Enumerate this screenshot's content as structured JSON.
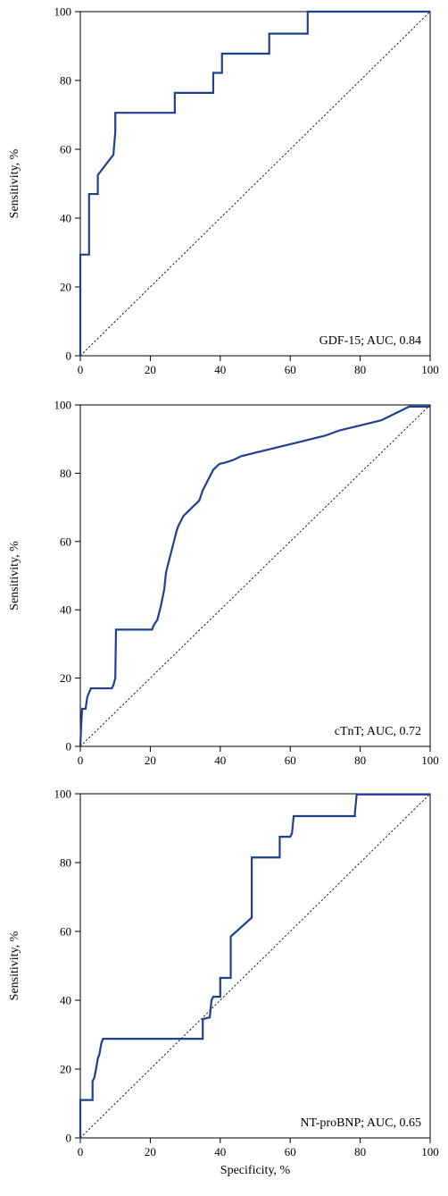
{
  "colors": {
    "curve": "#1f3f8f",
    "axis": "#000000",
    "reference": "#000000"
  },
  "chart_data": [
    {
      "type": "line",
      "annotation": "GDF-15; AUC, 0.84",
      "xlabel": "",
      "ylabel": "Sensitivity, %",
      "xlim": [
        0,
        100
      ],
      "ylim": [
        0,
        100
      ],
      "xticks": [
        0,
        20,
        40,
        60,
        80,
        100
      ],
      "yticks": [
        0,
        20,
        40,
        60,
        80,
        100
      ],
      "grid": false,
      "reference_line": [
        [
          0,
          0
        ],
        [
          100,
          100
        ]
      ],
      "series": [
        {
          "x": [
            0,
            0,
            2.5,
            2.5,
            5,
            5,
            9.5,
            9.5,
            10,
            10,
            27,
            27,
            38,
            38,
            40.5,
            40.5,
            54,
            54,
            65,
            65,
            100
          ],
          "y": [
            0,
            29.4,
            29.4,
            47,
            47,
            52.5,
            58.5,
            59,
            65,
            70.6,
            70.6,
            76.4,
            76.4,
            82.2,
            82.2,
            87.8,
            87.8,
            93.6,
            93.6,
            100,
            100
          ]
        }
      ]
    },
    {
      "type": "line",
      "annotation": "cTnT; AUC, 0.72",
      "xlabel": "",
      "ylabel": "Sensitivity, %",
      "xlim": [
        0,
        100
      ],
      "ylim": [
        0,
        100
      ],
      "xticks": [
        0,
        20,
        40,
        60,
        80,
        100
      ],
      "yticks": [
        0,
        20,
        40,
        60,
        80,
        100
      ],
      "grid": false,
      "reference_line": [
        [
          0,
          0
        ],
        [
          100,
          100
        ]
      ],
      "series": [
        {
          "x": [
            0,
            0.2,
            0.5,
            1.5,
            2,
            3,
            9,
            9.5,
            10,
            10.2,
            20.5,
            21,
            22,
            22.5,
            23,
            23.5,
            24,
            24.5,
            25,
            25.5,
            26,
            26.5,
            27,
            27.5,
            28,
            28.5,
            29,
            29.5,
            30,
            30.5,
            31,
            32,
            33,
            34,
            35,
            35.5,
            36,
            36.5,
            37,
            37.5,
            38,
            38.5,
            39,
            39.5,
            40,
            41,
            42,
            44,
            46,
            48,
            50,
            54,
            58,
            62,
            66,
            70,
            74,
            78,
            82,
            86,
            89,
            92,
            94,
            100
          ],
          "y": [
            0,
            5,
            11,
            11,
            14.5,
            17,
            17,
            18,
            20,
            34.2,
            34.2,
            35.5,
            37,
            39,
            41,
            43.5,
            46,
            51,
            53,
            55,
            57,
            59,
            61,
            63,
            64.5,
            65.5,
            66.5,
            67.5,
            68,
            68.5,
            69,
            70,
            71,
            72,
            75,
            76,
            77,
            78,
            79,
            80,
            81,
            81.5,
            82,
            82.5,
            82.8,
            83,
            83.3,
            84,
            85,
            85.5,
            86,
            87,
            88,
            89,
            90,
            91,
            92.5,
            93.5,
            94.5,
            95.5,
            97,
            98.5,
            99.5,
            99.5
          ]
        }
      ]
    },
    {
      "type": "line",
      "annotation": "NT-proBNP; AUC, 0.65",
      "xlabel": "Specificity, %",
      "ylabel": "Sensitivity, %",
      "xlim": [
        0,
        100
      ],
      "ylim": [
        0,
        100
      ],
      "xticks": [
        0,
        20,
        40,
        60,
        80,
        100
      ],
      "yticks": [
        0,
        20,
        40,
        60,
        80,
        100
      ],
      "grid": false,
      "reference_line": [
        [
          0,
          0
        ],
        [
          100,
          100
        ]
      ],
      "series": [
        {
          "x": [
            0,
            0,
            3.5,
            3.5,
            4,
            4.5,
            5,
            5.5,
            6,
            6.5,
            35,
            35,
            37,
            37.5,
            38,
            40,
            40,
            43,
            43,
            49,
            49,
            57,
            57,
            60,
            60.5,
            61,
            78.5,
            78.5,
            79,
            100
          ],
          "y": [
            0,
            11,
            11,
            16.5,
            17.5,
            20,
            23,
            24.5,
            27.5,
            28.8,
            28.8,
            34.5,
            35,
            40,
            41,
            41,
            46.5,
            46.5,
            58.5,
            64,
            81.5,
            81.5,
            87.5,
            87.5,
            88.5,
            93.5,
            93.5,
            94.5,
            99.8,
            99.8
          ]
        }
      ]
    }
  ]
}
